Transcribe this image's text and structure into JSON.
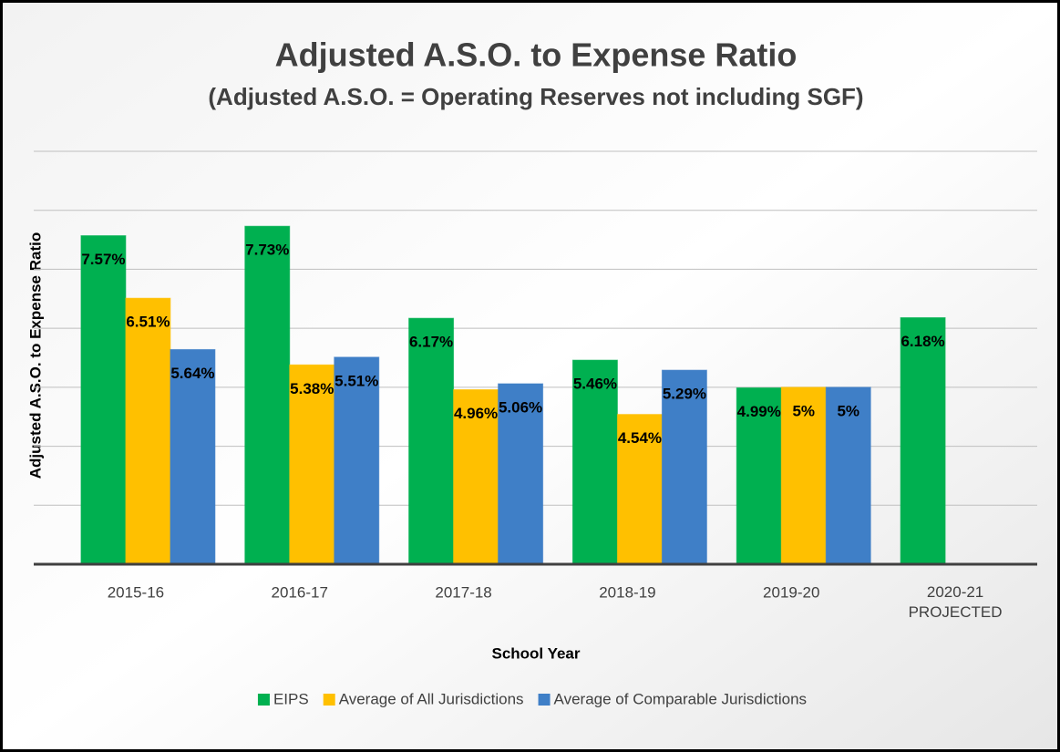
{
  "chart_data": {
    "type": "bar",
    "title": "Adjusted A.S.O. to Expense Ratio",
    "subtitle": "(Adjusted A.S.O. = Operating Reserves not including SGF)",
    "y_label": "Adjusted A.S.O. to Expense Ratio",
    "x_label": "School Year",
    "categories": [
      "2015-16",
      "2016-17",
      "2017-18",
      "2018-19",
      "2019-20",
      "2020-21 PROJECTED"
    ],
    "series": [
      {
        "name": "EIPS",
        "color": "#00b050",
        "values": [
          7.57,
          7.73,
          6.17,
          5.46,
          4.99,
          6.18
        ],
        "value_labels": [
          "7.57%",
          "7.73%",
          "6.17%",
          "5.46%",
          "4.99%",
          "6.18%"
        ]
      },
      {
        "name": "Average of All Jurisdictions",
        "color": "#ffc000",
        "values": [
          6.51,
          5.38,
          4.96,
          4.54,
          5,
          null
        ],
        "value_labels": [
          "6.51%",
          "5.38%",
          "4.96%",
          "4.54%",
          "5%",
          null
        ]
      },
      {
        "name": "Average of Comparable Jurisdictions",
        "color": "#3f7fc7",
        "values": [
          5.64,
          5.51,
          5.06,
          5.29,
          5,
          null
        ],
        "value_labels": [
          "5.64%",
          "5.51%",
          "5.06%",
          "5.29%",
          "5%",
          null
        ]
      }
    ],
    "ylim": [
      2,
      9
    ],
    "yticks": [
      2,
      3,
      4,
      5,
      6,
      7,
      8,
      9
    ],
    "grid": true,
    "legend": "bottom"
  }
}
